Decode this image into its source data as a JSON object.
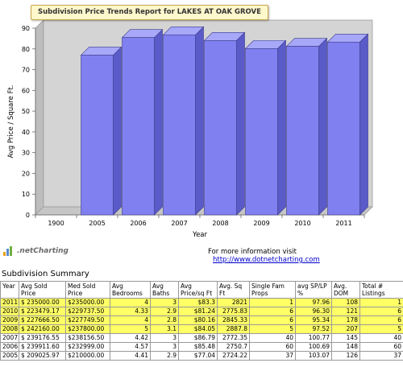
{
  "chart_data": {
    "type": "bar",
    "title": "Subdivision Price Trends Report for LAKES AT OAK GROVE",
    "categories": [
      "1900",
      "2005",
      "2006",
      "2007",
      "2008",
      "2009",
      "2010",
      "2011"
    ],
    "values": [
      0,
      77.04,
      85.48,
      86.79,
      84.05,
      80.16,
      81.24,
      83.3
    ],
    "xlabel": "Year",
    "ylabel": "Avg Price / Square Ft.",
    "ylim": [
      0,
      90
    ],
    "yticks": [
      "0",
      "10",
      "20",
      "30",
      "40",
      "50",
      "60",
      "70",
      "80",
      "90"
    ],
    "grid": false,
    "bar_color": "#8080f0",
    "plot_background": "#d4d4d4"
  },
  "footer": {
    "logo_text": ".netCharting",
    "info_text": "For more information visit",
    "link_text": "http://www.dotnetcharting.com"
  },
  "summary": {
    "title": "Subdivision Summary",
    "headers": [
      "Year",
      "Avg Sold Price",
      "Med Sold Price",
      "Avg Bedrooms",
      "Avg Baths",
      "Avg Price/sq Ft",
      "Avg. Sq Ft",
      "Single Fam Props",
      "avg SP/LP %",
      "Avg. DOM",
      "Total # Listings"
    ],
    "rows": [
      {
        "highlight": true,
        "cells": [
          "2011",
          "$ 235000.00",
          "$235000.00",
          "4",
          "3",
          "$83.3",
          "2821",
          "1",
          "97.96",
          "108",
          "1"
        ]
      },
      {
        "highlight": true,
        "cells": [
          "2010",
          "$ 223479.17",
          "$229737.50",
          "4.33",
          "2.9",
          "$81.24",
          "2775.83",
          "6",
          "96.30",
          "121",
          "6"
        ]
      },
      {
        "highlight": true,
        "cells": [
          "2009",
          "$ 227666.50",
          "$227749.50",
          "4",
          "2.8",
          "$80.16",
          "2845.33",
          "6",
          "95.34",
          "178",
          "6"
        ]
      },
      {
        "highlight": true,
        "cells": [
          "2008",
          "$ 242160.00",
          "$237800.00",
          "5",
          "3.1",
          "$84.05",
          "2887.8",
          "5",
          "97.52",
          "207",
          "5"
        ]
      },
      {
        "highlight": false,
        "cells": [
          "2007",
          "$ 239176.55",
          "$238156.50",
          "4.42",
          "3",
          "$86.79",
          "2772.35",
          "40",
          "100.77",
          "145",
          "40"
        ]
      },
      {
        "highlight": false,
        "cells": [
          "2006",
          "$ 239911.60",
          "$232999.00",
          "4.57",
          "3",
          "$85.48",
          "2750.7",
          "60",
          "100.69",
          "148",
          "60"
        ]
      },
      {
        "highlight": false,
        "cells": [
          "2005",
          "$ 209025.97",
          "$210000.00",
          "4.41",
          "2.9",
          "$77.04",
          "2724.22",
          "37",
          "103.07",
          "126",
          "37"
        ]
      }
    ]
  }
}
